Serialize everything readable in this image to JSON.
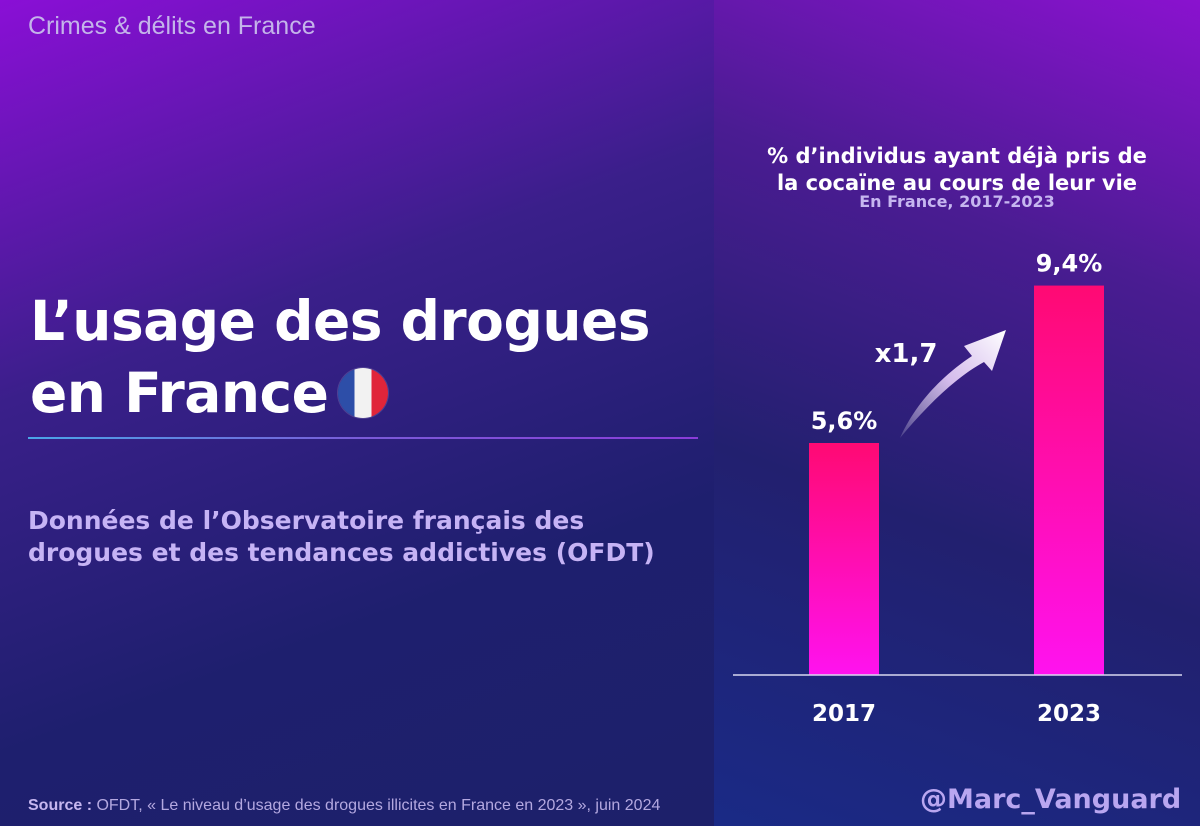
{
  "header": {
    "tag": "Crimes & délits en France"
  },
  "hero": {
    "title_line1": "L’usage des drogues",
    "title_line2": "en France",
    "flag_icon": "france-flag-icon",
    "subtitle_line1": "Données de l’Observatoire français des",
    "subtitle_line2": "drogues et des tendances addictives (OFDT)"
  },
  "footer": {
    "source_label": "Source :",
    "source_text": " OFDT,  « Le niveau d’usage des drogues illicites en France en 2023 », juin 2024",
    "handle": "@Marc_Vanguard"
  },
  "chart_data": {
    "type": "bar",
    "title_line1": "% d’individus ayant déjà pris de",
    "title_line2": "la cocaïne au cours de leur vie",
    "subtitle": "En France, 2017-2023",
    "categories": [
      "2017",
      "2023"
    ],
    "values": [
      5.6,
      9.4
    ],
    "value_labels": [
      "5,6%",
      "9,4%"
    ],
    "annotation": "x1,7",
    "ylim": [
      0,
      10.5
    ],
    "colors": {
      "bar_top": "#ff0a73",
      "bar_bottom": "#ff12ef",
      "axis": "#d8d8f0"
    }
  }
}
